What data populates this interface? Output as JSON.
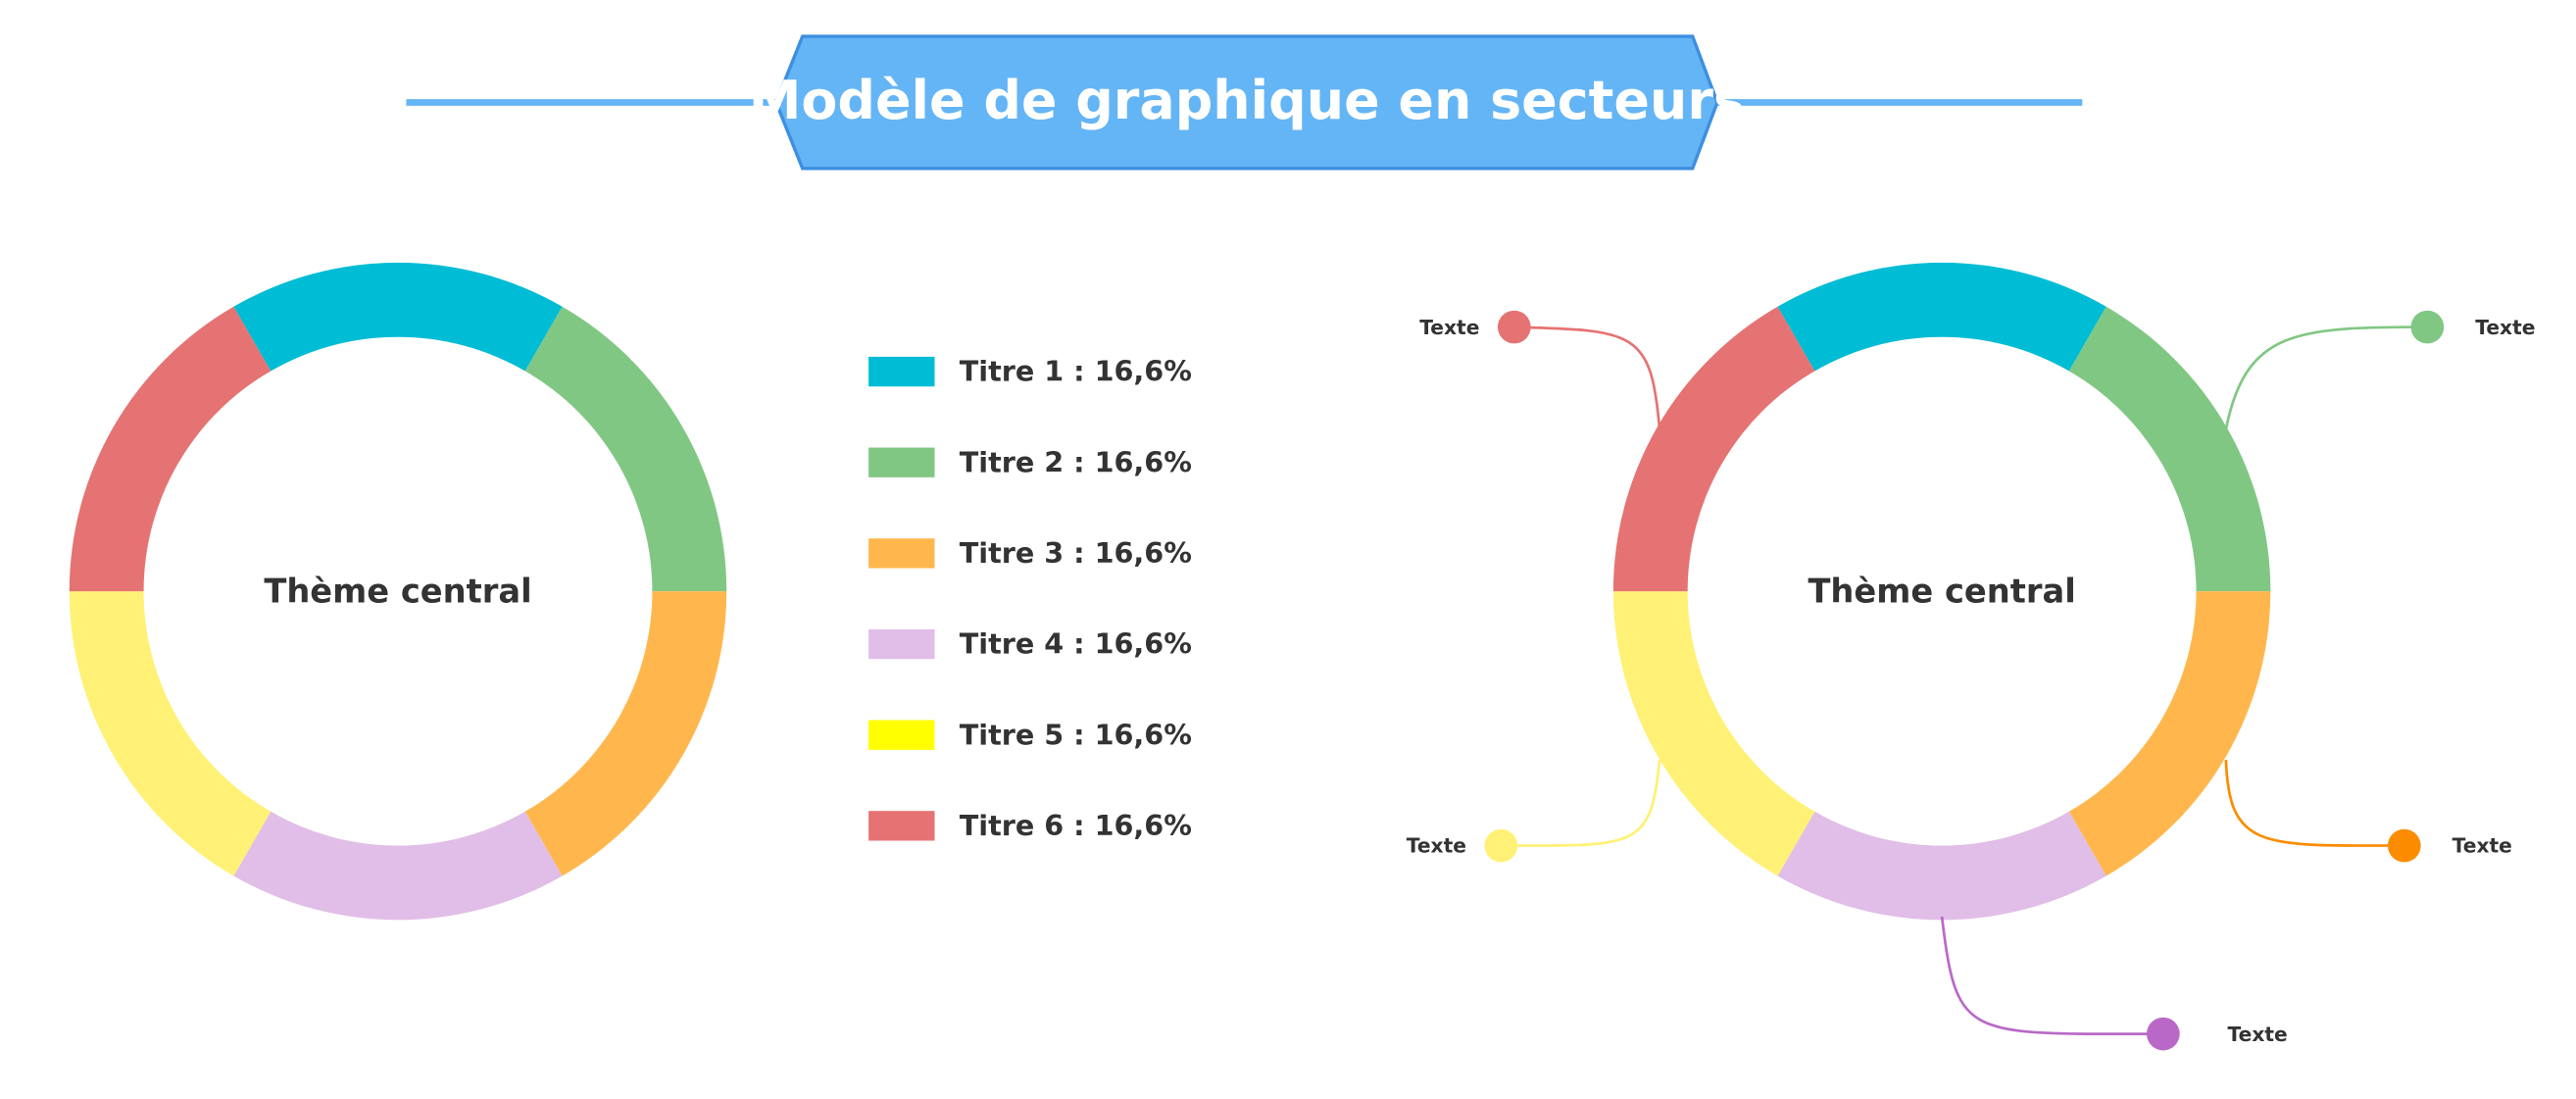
{
  "title": "Modèle de graphique en secteurs",
  "left_chart": {
    "center": "Thème central",
    "ring_colors": [
      "#00bcd4",
      "#81c784",
      "#ffb74d",
      "#e1bee7",
      "#fff176",
      "#e57373"
    ],
    "legend": [
      {
        "label": "Titre 1 : 16,6%",
        "color": "#00bcd4"
      },
      {
        "label": "Titre 2 : 16,6%",
        "color": "#81c784"
      },
      {
        "label": "Titre 3 : 16,6%",
        "color": "#ffb74d"
      },
      {
        "label": "Titre 4 : 16,6%",
        "color": "#e1bee7"
      },
      {
        "label": "Titre 5 : 16,6%",
        "color": "#ffff00"
      },
      {
        "label": "Titre 6 : 16,6%",
        "color": "#e57373"
      }
    ]
  },
  "right_chart": {
    "center": "Thème central",
    "ring_colors": [
      "#00bcd4",
      "#81c784",
      "#ffb74d",
      "#e1bee7",
      "#fff176",
      "#e57373"
    ],
    "callouts": [
      {
        "label": "Texte",
        "color": "#e57373"
      },
      {
        "label": "Texte",
        "color": "#81c784"
      },
      {
        "label": "Texte",
        "color": "#fff176"
      },
      {
        "label": "Texte",
        "color": "#fb8c00"
      },
      {
        "label": "Texte",
        "color": "#ba68c8"
      }
    ]
  }
}
